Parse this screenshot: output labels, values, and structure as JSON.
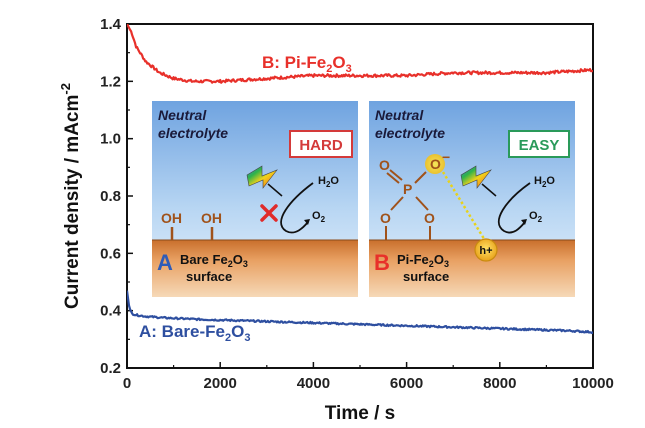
{
  "chart_data": {
    "type": "line",
    "xlabel": "Time / s",
    "ylabel": "Current density / mAcm",
    "ylabel_sup": "-2",
    "xlim": [
      0,
      10000
    ],
    "ylim": [
      0.2,
      1.4
    ],
    "xticks": [
      "0",
      "2000",
      "4000",
      "6000",
      "8000",
      "10000"
    ],
    "yticks": [
      "0.2",
      "0.4",
      "0.6",
      "0.8",
      "1.0",
      "1.2",
      "1.4"
    ],
    "series": [
      {
        "name": "B: Pi-Fe2O3",
        "name_parts": [
          "B: Pi-Fe",
          "2",
          "O",
          "3"
        ],
        "color": "#e8302a",
        "x": [
          0,
          100,
          200,
          400,
          700,
          1000,
          1400,
          2000,
          3000,
          4000,
          5000,
          6000,
          7000,
          8000,
          9000,
          10000
        ],
        "y": [
          1.4,
          1.37,
          1.32,
          1.27,
          1.23,
          1.21,
          1.2,
          1.2,
          1.21,
          1.22,
          1.22,
          1.22,
          1.23,
          1.23,
          1.23,
          1.24
        ]
      },
      {
        "name": "A: Bare-Fe2O3",
        "name_parts": [
          "A: Bare-Fe",
          "2",
          "O",
          "3"
        ],
        "color": "#2e4fa0",
        "x": [
          0,
          50,
          100,
          200,
          400,
          800,
          1500,
          2500,
          3500,
          4500,
          5500,
          6500,
          7500,
          8500,
          9500,
          10000
        ],
        "y": [
          0.47,
          0.41,
          0.39,
          0.385,
          0.38,
          0.375,
          0.37,
          0.365,
          0.36,
          0.355,
          0.35,
          0.345,
          0.34,
          0.335,
          0.33,
          0.325
        ]
      }
    ],
    "grid": false,
    "legend": "none"
  },
  "insets": [
    {
      "title_line1": "Neutral",
      "title_line2": "electrolyte",
      "badge": "HARD",
      "badge_color": "#d43a3a",
      "letter": "A",
      "surface_line1_parts": [
        "Bare Fe",
        "2",
        "O",
        "3"
      ],
      "surface_line2": "surface",
      "groups": [
        "OH",
        "OH"
      ],
      "water_parts": [
        "H",
        "2",
        "O"
      ],
      "oxygen_parts": [
        "O",
        "2"
      ]
    },
    {
      "title_line1": "Neutral",
      "title_line2": "electrolyte",
      "badge": "EASY",
      "badge_color": "#2a9a5a",
      "letter": "B",
      "surface_line1_parts": [
        "Pi-Fe",
        "2",
        "O",
        "3"
      ],
      "surface_line2": "surface",
      "atoms": {
        "o_top": "O",
        "o_charged": "O",
        "charge": "−",
        "p": "P",
        "o_left": "O",
        "o_right": "O"
      },
      "hole": "h+",
      "water_parts": [
        "H",
        "2",
        "O"
      ],
      "oxygen_parts": [
        "O",
        "2"
      ]
    }
  ]
}
